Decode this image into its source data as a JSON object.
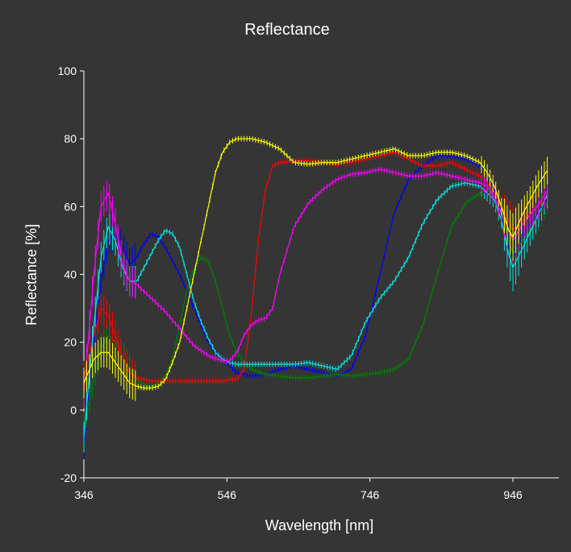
{
  "chart_data": {
    "type": "line",
    "title": "Reflectance",
    "xlabel": "Wavelength [nm]",
    "ylabel": "Reflectance [%]",
    "xlim": [
      346,
      1000
    ],
    "ylim": [
      -20,
      100
    ],
    "xticks": [
      346,
      546,
      746,
      946
    ],
    "yticks": [
      -20,
      0,
      20,
      40,
      60,
      80,
      100
    ],
    "grid": false,
    "legend": "none",
    "error_bars": true,
    "series": [
      {
        "color": "#0000ff",
        "x": [
          346,
          360,
          370,
          380,
          390,
          400,
          410,
          420,
          430,
          440,
          450,
          460,
          470,
          480,
          490,
          500,
          510,
          520,
          530,
          540,
          550,
          560,
          570,
          580,
          600,
          620,
          640,
          660,
          680,
          700,
          720,
          740,
          760,
          780,
          800,
          820,
          840,
          860,
          880,
          900,
          910,
          920,
          930,
          940,
          946,
          960,
          980,
          995
        ],
        "y": [
          -10,
          20,
          38,
          50,
          52,
          48,
          43,
          45,
          49,
          52,
          51,
          48,
          44,
          40,
          35,
          30,
          25,
          20,
          17,
          15,
          13,
          11,
          10.5,
          10,
          10.5,
          12,
          13,
          12,
          11,
          10,
          12,
          22,
          40,
          58,
          68,
          72,
          75,
          75,
          74,
          72,
          70,
          65,
          58,
          48,
          45,
          52,
          58,
          63
        ]
      },
      {
        "color": "#008000",
        "x": [
          346,
          360,
          370,
          380,
          390,
          400,
          410,
          420,
          430,
          440,
          450,
          460,
          470,
          480,
          490,
          500,
          510,
          520,
          530,
          540,
          550,
          560,
          570,
          580,
          600,
          620,
          640,
          660,
          680,
          700,
          720,
          740,
          760,
          780,
          800,
          820,
          840,
          860,
          880,
          900,
          910,
          920,
          930,
          940,
          946,
          960,
          980,
          995
        ],
        "y": [
          -5,
          10,
          18,
          22,
          20,
          16,
          12,
          9,
          7.5,
          7,
          8,
          10,
          15,
          25,
          35,
          42,
          45,
          44,
          38,
          30,
          22,
          17,
          14,
          12,
          10.5,
          10,
          9.5,
          9.5,
          10,
          10.5,
          10,
          10.5,
          11,
          12,
          15,
          25,
          40,
          54,
          61,
          64,
          65,
          63,
          58,
          50,
          46,
          50,
          56,
          62
        ]
      },
      {
        "color": "#ff0000",
        "x": [
          346,
          360,
          370,
          380,
          390,
          400,
          410,
          420,
          430,
          440,
          460,
          480,
          500,
          520,
          540,
          550,
          560,
          570,
          580,
          590,
          600,
          610,
          620,
          640,
          660,
          680,
          700,
          720,
          740,
          760,
          780,
          800,
          820,
          840,
          860,
          880,
          900,
          910,
          920,
          930,
          940,
          946,
          960,
          980,
          995
        ],
        "y": [
          10,
          22,
          30,
          28,
          22,
          15,
          11,
          9.5,
          9,
          8.5,
          8.5,
          8.5,
          8.5,
          8.5,
          8.5,
          9,
          9,
          12,
          28,
          50,
          65,
          72,
          73,
          73.5,
          73.5,
          73,
          72.5,
          73,
          74,
          75,
          76,
          74,
          72,
          72,
          73,
          71,
          69,
          67,
          64,
          60,
          56,
          53,
          56,
          60,
          63
        ]
      },
      {
        "color": "#00e5e5",
        "x": [
          346,
          360,
          370,
          380,
          390,
          400,
          410,
          420,
          430,
          440,
          450,
          460,
          470,
          480,
          490,
          500,
          510,
          520,
          530,
          540,
          550,
          560,
          570,
          580,
          600,
          620,
          640,
          660,
          680,
          700,
          720,
          740,
          760,
          780,
          800,
          820,
          840,
          860,
          880,
          900,
          910,
          920,
          930,
          940,
          946,
          960,
          980,
          995
        ],
        "y": [
          -8,
          25,
          45,
          54,
          50,
          42,
          38,
          38,
          42,
          46,
          50,
          53,
          52,
          48,
          40,
          32,
          26,
          21,
          17,
          15,
          14,
          13.5,
          13.5,
          13.5,
          13.5,
          13.5,
          13.5,
          14,
          13,
          12,
          16,
          26,
          33,
          38,
          45,
          55,
          62,
          66,
          67,
          66,
          64,
          62,
          56,
          46,
          42,
          48,
          57,
          64
        ]
      },
      {
        "color": "#ff00ff",
        "x": [
          346,
          360,
          370,
          380,
          390,
          400,
          410,
          420,
          430,
          440,
          460,
          480,
          500,
          520,
          540,
          550,
          560,
          570,
          580,
          590,
          600,
          610,
          620,
          640,
          660,
          680,
          700,
          720,
          740,
          760,
          780,
          800,
          820,
          840,
          860,
          880,
          900,
          910,
          920,
          930,
          940,
          946,
          960,
          980,
          995
        ],
        "y": [
          5,
          40,
          60,
          64,
          55,
          43,
          38,
          37,
          35,
          33,
          29,
          24,
          19,
          16,
          14.5,
          14.5,
          17,
          22,
          25,
          26.5,
          27,
          30,
          40,
          54,
          61,
          65,
          68,
          69.5,
          70,
          71,
          70,
          69,
          69,
          70,
          69,
          68,
          67,
          66,
          63,
          58,
          53,
          50,
          55,
          60,
          65
        ]
      },
      {
        "color": "#ffff00",
        "x": [
          346,
          360,
          370,
          380,
          390,
          400,
          410,
          420,
          430,
          440,
          450,
          460,
          470,
          480,
          490,
          500,
          510,
          520,
          530,
          540,
          550,
          560,
          570,
          580,
          600,
          620,
          640,
          660,
          680,
          700,
          720,
          740,
          760,
          780,
          800,
          820,
          840,
          860,
          880,
          900,
          910,
          920,
          930,
          940,
          946,
          960,
          980,
          995
        ],
        "y": [
          8,
          15,
          17,
          17,
          14,
          11,
          8,
          7,
          6.5,
          6.5,
          7,
          9,
          14,
          20,
          30,
          40,
          50,
          60,
          70,
          76,
          79,
          80,
          80,
          80,
          79,
          77,
          73,
          72.5,
          73,
          73,
          74,
          75,
          76,
          77,
          75,
          75,
          76,
          76,
          75,
          73,
          70,
          66,
          60,
          53,
          51,
          58,
          66,
          71
        ]
      }
    ]
  }
}
